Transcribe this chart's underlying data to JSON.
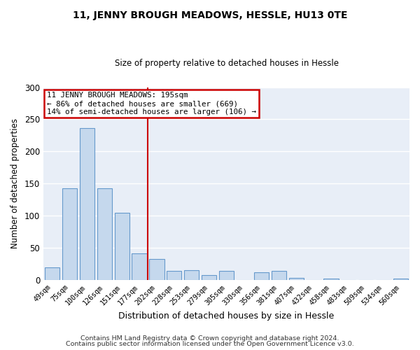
{
  "title": "11, JENNY BROUGH MEADOWS, HESSLE, HU13 0TE",
  "subtitle": "Size of property relative to detached houses in Hessle",
  "xlabel": "Distribution of detached houses by size in Hessle",
  "ylabel": "Number of detached properties",
  "bar_color": "#c5d8ed",
  "bar_edge_color": "#6699cc",
  "axes_bg_color": "#e8eef7",
  "fig_bg_color": "#ffffff",
  "grid_color": "#ffffff",
  "categories": [
    "49sqm",
    "75sqm",
    "100sqm",
    "126sqm",
    "151sqm",
    "177sqm",
    "202sqm",
    "228sqm",
    "253sqm",
    "279sqm",
    "305sqm",
    "330sqm",
    "356sqm",
    "381sqm",
    "407sqm",
    "432sqm",
    "458sqm",
    "483sqm",
    "509sqm",
    "534sqm",
    "560sqm"
  ],
  "values": [
    20,
    143,
    236,
    143,
    105,
    42,
    33,
    14,
    15,
    8,
    14,
    0,
    12,
    14,
    3,
    0,
    2,
    0,
    0,
    0,
    2
  ],
  "vline_x_index": 6,
  "vline_color": "#cc0000",
  "annotation_line1": "11 JENNY BROUGH MEADOWS: 195sqm",
  "annotation_line2": "← 86% of detached houses are smaller (669)",
  "annotation_line3": "14% of semi-detached houses are larger (106) →",
  "annotation_box_color": "#ffffff",
  "annotation_box_edge_color": "#cc0000",
  "ylim": [
    0,
    300
  ],
  "yticks": [
    0,
    50,
    100,
    150,
    200,
    250,
    300
  ],
  "footer_line1": "Contains HM Land Registry data © Crown copyright and database right 2024.",
  "footer_line2": "Contains public sector information licensed under the Open Government Licence v3.0."
}
